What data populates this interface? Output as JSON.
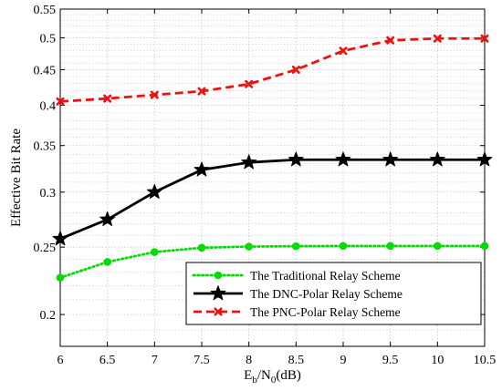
{
  "chart_data": {
    "type": "line",
    "x": [
      6,
      6.5,
      7,
      7.5,
      8,
      8.5,
      9,
      9.5,
      10,
      10.5
    ],
    "xticks": [
      "6",
      "6.5",
      "7",
      "7.5",
      "8",
      "8.5",
      "9",
      "9.5",
      "10",
      "10.5"
    ],
    "xlim": [
      6,
      10.5
    ],
    "yticks": [
      "0.2",
      "0.25",
      "0.3",
      "0.35",
      "0.4",
      "0.45",
      "0.5",
      "0.55"
    ],
    "ylim": [
      0.18,
      0.55
    ],
    "yscale": "log",
    "grid": true,
    "xlabel": {
      "base": "E",
      "sub1": "b",
      "sep": "/N",
      "sub2": "0",
      "suffix": "(dB)"
    },
    "ylabel": "Effective Bit Rate",
    "legend_position": "lower-right",
    "series": [
      {
        "name": "The Traditional Relay Scheme",
        "color": "#00dd00",
        "dash": "dotted",
        "marker": "circle",
        "values": [
          0.226,
          0.238,
          0.246,
          0.2495,
          0.2505,
          0.2508,
          0.251,
          0.251,
          0.251,
          0.251
        ]
      },
      {
        "name": "The DNC-Polar Relay Scheme",
        "color": "#000000",
        "dash": "solid",
        "marker": "star",
        "values": [
          0.257,
          0.274,
          0.3,
          0.323,
          0.331,
          0.334,
          0.334,
          0.334,
          0.334,
          0.334
        ]
      },
      {
        "name": "The PNC-Polar Relay Scheme",
        "color": "#ee1111",
        "dash": "dashed",
        "marker": "x",
        "values": [
          0.405,
          0.409,
          0.414,
          0.419,
          0.429,
          0.45,
          0.479,
          0.496,
          0.499,
          0.499
        ]
      }
    ]
  }
}
